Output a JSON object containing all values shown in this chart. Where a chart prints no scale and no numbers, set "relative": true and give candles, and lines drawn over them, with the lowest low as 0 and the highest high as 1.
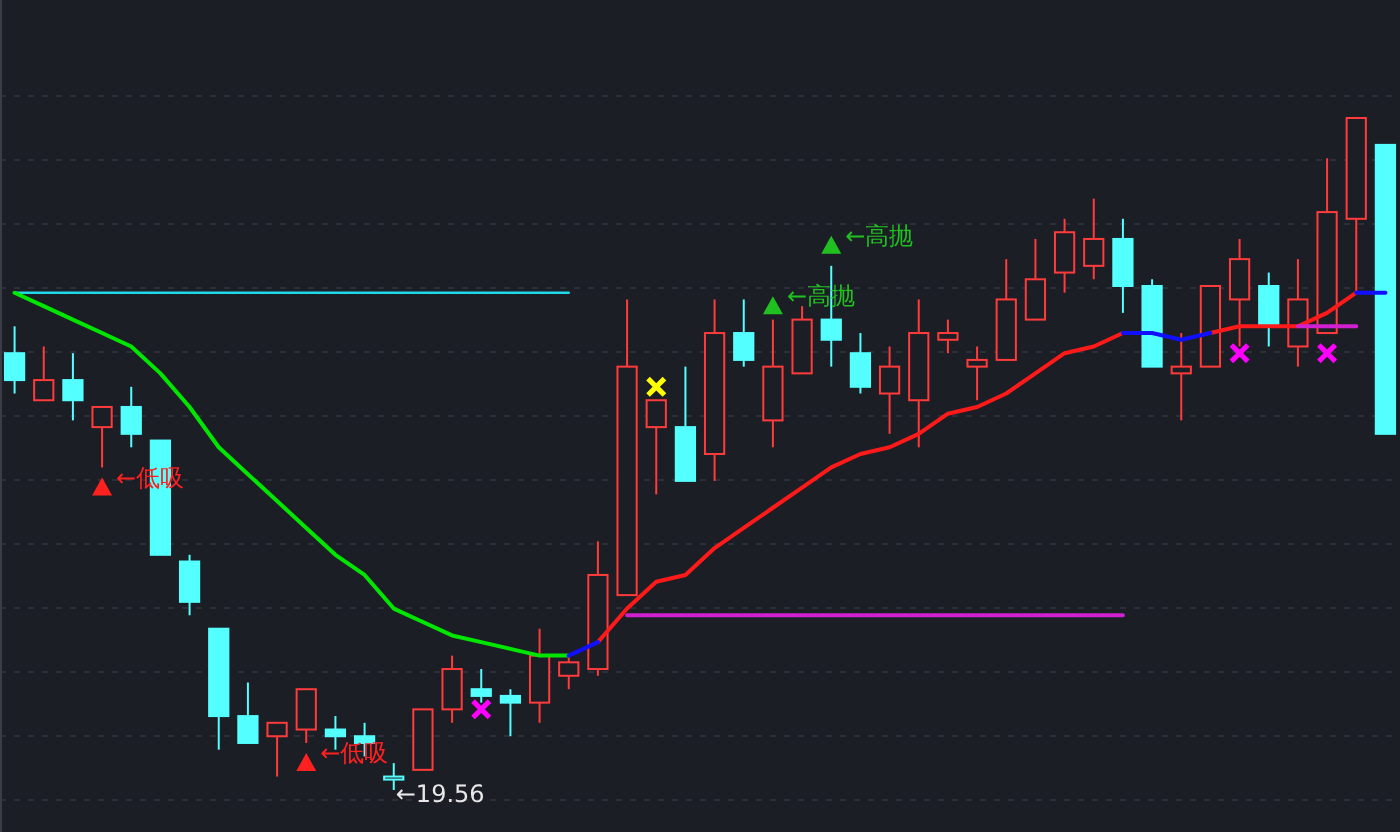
{
  "chart_data": {
    "type": "candlestick",
    "relative": true,
    "categories": [
      null,
      null,
      null,
      null,
      null,
      null,
      null,
      null,
      null,
      null,
      null,
      null,
      null,
      null,
      null,
      null,
      null,
      null,
      null,
      null,
      null,
      null,
      null,
      null,
      null,
      null,
      null,
      null,
      null,
      null,
      null,
      null,
      null,
      null,
      null,
      null,
      null,
      null,
      null,
      null,
      null,
      null,
      null,
      null,
      null,
      null,
      null,
      null
    ],
    "ohlc": [
      [
        0.65,
        0.69,
        0.59,
        0.61
      ],
      [
        0.58,
        0.66,
        0.58,
        0.61
      ],
      [
        0.61,
        0.65,
        0.55,
        0.58
      ],
      [
        0.54,
        0.57,
        0.48,
        0.57
      ],
      [
        0.57,
        0.6,
        0.51,
        0.53
      ],
      [
        0.52,
        0.52,
        0.35,
        0.35
      ],
      [
        0.34,
        0.35,
        0.26,
        0.28
      ],
      [
        0.24,
        0.24,
        0.06,
        0.11
      ],
      [
        0.11,
        0.16,
        0.07,
        0.07
      ],
      [
        0.08,
        0.1,
        0.02,
        0.1
      ],
      [
        0.09,
        0.15,
        0.07,
        0.15
      ],
      [
        0.09,
        0.11,
        0.06,
        0.08
      ],
      [
        0.08,
        0.1,
        0.05,
        0.07
      ],
      [
        0.02,
        0.04,
        0,
        0.02
      ],
      [
        0.03,
        0.12,
        0.03,
        0.12
      ],
      [
        0.12,
        0.2,
        0.1,
        0.18
      ],
      [
        0.15,
        0.18,
        0.13,
        0.14
      ],
      [
        0.14,
        0.15,
        0.08,
        0.13
      ],
      [
        0.13,
        0.24,
        0.1,
        0.2
      ],
      [
        0.17,
        0.2,
        0.15,
        0.19
      ],
      [
        0.18,
        0.37,
        0.17,
        0.32
      ],
      [
        0.29,
        0.73,
        0.29,
        0.63
      ],
      [
        0.54,
        0.58,
        0.44,
        0.58
      ],
      [
        0.54,
        0.63,
        0.46,
        0.46
      ],
      [
        0.5,
        0.73,
        0.46,
        0.68
      ],
      [
        0.68,
        0.73,
        0.63,
        0.64
      ],
      [
        0.55,
        0.7,
        0.51,
        0.63
      ],
      [
        0.62,
        0.72,
        0.62,
        0.7
      ],
      [
        0.7,
        0.78,
        0.63,
        0.67
      ],
      [
        0.65,
        0.68,
        0.59,
        0.6
      ],
      [
        0.59,
        0.66,
        0.53,
        0.63
      ],
      [
        0.58,
        0.73,
        0.51,
        0.68
      ],
      [
        0.67,
        0.7,
        0.65,
        0.68
      ],
      [
        0.63,
        0.66,
        0.58,
        0.64
      ],
      [
        0.64,
        0.79,
        0.64,
        0.73
      ],
      [
        0.7,
        0.82,
        0.7,
        0.76
      ],
      [
        0.77,
        0.85,
        0.74,
        0.83
      ],
      [
        0.78,
        0.88,
        0.76,
        0.82
      ],
      [
        0.82,
        0.85,
        0.71,
        0.75
      ],
      [
        0.75,
        0.76,
        0.63,
        0.63
      ],
      [
        0.62,
        0.68,
        0.55,
        0.63
      ],
      [
        0.63,
        0.75,
        0.63,
        0.75
      ],
      [
        0.73,
        0.82,
        0.66,
        0.79
      ],
      [
        0.75,
        0.77,
        0.66,
        0.69
      ],
      [
        0.66,
        0.79,
        0.63,
        0.73
      ],
      [
        0.68,
        0.94,
        0.68,
        0.86
      ],
      [
        0.85,
        1.0,
        0.74,
        1.0
      ],
      [
        0.96,
        0.96,
        0.53,
        0.53
      ]
    ],
    "colors": [
      "#54ffff",
      "#ff3b3b",
      "#54ffff",
      "#ff3b3b",
      "#54ffff",
      "#54ffff",
      "#54ffff",
      "#54ffff",
      "#54ffff",
      "#ff3b3b",
      "#ff3b3b",
      "#54ffff",
      "#54ffff",
      "#54ffff",
      "#ff3b3b",
      "#ff3b3b",
      "#54ffff",
      "#54ffff",
      "#ff3b3b",
      "#ff3b3b",
      "#ff3b3b",
      "#ff3b3b",
      "#ff3b3b",
      "#54ffff",
      "#ff3b3b",
      "#54ffff",
      "#ff3b3b",
      "#ff3b3b",
      "#54ffff",
      "#54ffff",
      "#ff3b3b",
      "#ff3b3b",
      "#ff3b3b",
      "#ff3b3b",
      "#ff3b3b",
      "#ff3b3b",
      "#ff3b3b",
      "#ff3b3b",
      "#54ffff",
      "#54ffff",
      "#ff3b3b",
      "#ff3b3b",
      "#ff3b3b",
      "#54ffff",
      "#ff3b3b",
      "#ff3b3b",
      "#ff3b3b",
      "#54ffff"
    ],
    "series": [
      {
        "type": "line",
        "color": "#00e600",
        "values": [
          0.74,
          0.72,
          0.7,
          0.68,
          0.66,
          0.62,
          0.57,
          0.51,
          0.47,
          0.43,
          0.39,
          0.35,
          0.32,
          0.27,
          0.25,
          0.23,
          0.22,
          0.21,
          0.2,
          0.2,
          null,
          null,
          null,
          null,
          null,
          null,
          null,
          null,
          null,
          null,
          null,
          null,
          null,
          null,
          null,
          null,
          null,
          null,
          null,
          null,
          null,
          null,
          null,
          null,
          null,
          null,
          null,
          null
        ]
      },
      {
        "type": "line",
        "color": "#1010ff",
        "values": [
          null,
          null,
          null,
          null,
          null,
          null,
          null,
          null,
          null,
          null,
          null,
          null,
          null,
          null,
          null,
          null,
          null,
          null,
          null,
          0.2,
          0.22,
          null,
          null,
          null,
          null,
          null,
          null,
          null,
          null,
          null,
          null,
          null,
          null,
          null,
          null,
          null,
          null,
          null,
          0.68,
          0.68,
          0.67,
          0.68,
          null,
          null,
          null,
          null,
          0.74,
          0.74
        ]
      },
      {
        "type": "line",
        "color": "#ff1a1a",
        "values": [
          null,
          null,
          null,
          null,
          null,
          null,
          null,
          null,
          null,
          null,
          null,
          null,
          null,
          null,
          null,
          null,
          null,
          null,
          null,
          null,
          0.22,
          0.27,
          0.31,
          0.32,
          0.36,
          0.39,
          0.42,
          0.45,
          0.48,
          0.5,
          0.51,
          0.53,
          0.56,
          0.57,
          0.59,
          0.62,
          0.65,
          0.66,
          0.68,
          null,
          null,
          0.68,
          0.69,
          0.69,
          0.69,
          0.71,
          0.74,
          null
        ]
      },
      {
        "type": "line",
        "color": "#20d8e8",
        "values": [
          0.74,
          0.74,
          0.74,
          0.74,
          0.74,
          0.74,
          0.74,
          0.74,
          0.74,
          0.74,
          0.74,
          0.74,
          0.74,
          0.74,
          0.74,
          0.74,
          0.74,
          0.74,
          0.74,
          0.74,
          null,
          null,
          null,
          null,
          null,
          null,
          null,
          null,
          null,
          null,
          null,
          null,
          null,
          null,
          null,
          null,
          null,
          null,
          null,
          null,
          null,
          null,
          null,
          null,
          null,
          null,
          null,
          null
        ]
      },
      {
        "type": "line",
        "color": "#d020d0",
        "values": [
          null,
          null,
          null,
          null,
          null,
          null,
          null,
          null,
          null,
          null,
          null,
          null,
          null,
          null,
          null,
          null,
          null,
          null,
          null,
          null,
          null,
          0.26,
          0.26,
          0.26,
          0.26,
          0.26,
          0.26,
          0.26,
          0.26,
          0.26,
          0.26,
          0.26,
          0.26,
          0.26,
          0.26,
          0.26,
          0.26,
          0.26,
          0.26,
          null,
          null,
          null,
          null,
          null,
          0.69,
          0.69,
          0.69,
          null
        ]
      },
      {
        "type": "scatter",
        "marker": "cross",
        "color": "#ffff00",
        "values": [
          null,
          null,
          null,
          null,
          null,
          null,
          null,
          null,
          null,
          null,
          null,
          null,
          null,
          null,
          null,
          null,
          null,
          null,
          null,
          null,
          null,
          null,
          0.6,
          null,
          null,
          null,
          null,
          null,
          null,
          null,
          null,
          null,
          null,
          null,
          null,
          null,
          null,
          null,
          null,
          null,
          null,
          null,
          null,
          null,
          null,
          null,
          null,
          null
        ]
      },
      {
        "type": "scatter",
        "marker": "cross",
        "color": "#ff00ff",
        "values": [
          null,
          null,
          null,
          null,
          null,
          null,
          null,
          null,
          null,
          null,
          null,
          null,
          null,
          null,
          null,
          null,
          0.12,
          null,
          null,
          null,
          null,
          null,
          null,
          null,
          null,
          null,
          null,
          null,
          null,
          null,
          null,
          null,
          null,
          null,
          null,
          null,
          null,
          null,
          null,
          null,
          null,
          null,
          0.65,
          null,
          null,
          0.65,
          null,
          null
        ]
      },
      {
        "type": "scatter",
        "marker": "triangle",
        "name": "←低吸",
        "color": "#ff2020",
        "values": [
          null,
          null,
          null,
          0.45,
          null,
          null,
          null,
          null,
          null,
          null,
          0.04,
          null,
          null,
          null,
          null,
          null,
          null,
          null,
          null,
          null,
          null,
          null,
          null,
          null,
          null,
          null,
          null,
          null,
          null,
          null,
          null,
          null,
          null,
          null,
          null,
          null,
          null,
          null,
          null,
          null,
          null,
          null,
          null,
          null,
          null,
          null,
          null,
          null
        ]
      },
      {
        "type": "scatter",
        "marker": "triangle",
        "name": "←高抛",
        "color": "#20c020",
        "values": [
          null,
          null,
          null,
          null,
          null,
          null,
          null,
          null,
          null,
          null,
          null,
          null,
          null,
          null,
          null,
          null,
          null,
          null,
          null,
          null,
          null,
          null,
          null,
          null,
          null,
          null,
          0.72,
          null,
          0.81,
          null,
          null,
          null,
          null,
          null,
          null,
          null,
          null,
          null,
          null,
          null,
          null,
          null,
          null,
          null,
          null,
          null,
          null,
          null
        ]
      }
    ],
    "annotations": [
      "←19.56"
    ]
  }
}
